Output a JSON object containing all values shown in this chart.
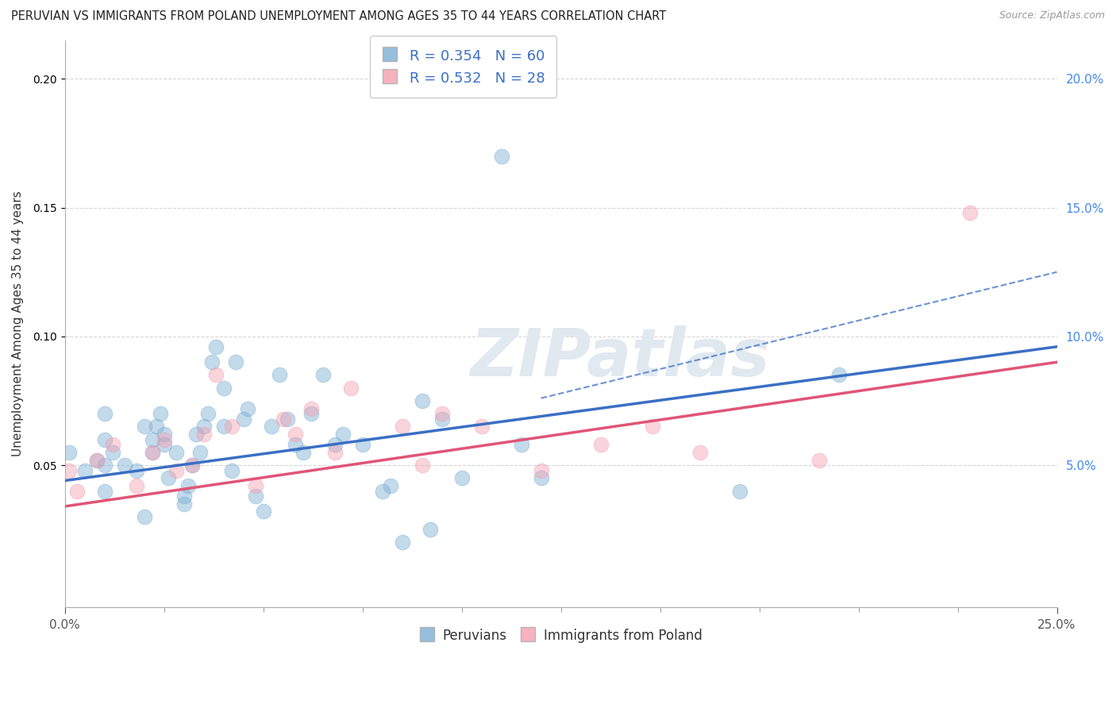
{
  "title": "PERUVIAN VS IMMIGRANTS FROM POLAND UNEMPLOYMENT AMONG AGES 35 TO 44 YEARS CORRELATION CHART",
  "source": "Source: ZipAtlas.com",
  "ylabel": "Unemployment Among Ages 35 to 44 years",
  "xlim": [
    0.0,
    0.25
  ],
  "ylim": [
    -0.005,
    0.215
  ],
  "yticks_right": [
    0.05,
    0.1,
    0.15,
    0.2
  ],
  "background_color": "#ffffff",
  "grid_color": "#cccccc",
  "peruvian_color": "#7bafd4",
  "poland_color": "#f4a0b0",
  "peruvian_line_color": "#3a6fc4",
  "poland_line_color": "#e05577",
  "peruvian_label": "Peruvians",
  "poland_label": "Immigrants from Poland",
  "peruvian_R": "0.354",
  "peruvian_N": "60",
  "poland_R": "0.532",
  "poland_N": "28",
  "right_tick_color": "#4488ee",
  "peruvian_scatter_x": [
    0.001,
    0.005,
    0.008,
    0.01,
    0.01,
    0.01,
    0.01,
    0.012,
    0.015,
    0.018,
    0.02,
    0.02,
    0.022,
    0.022,
    0.023,
    0.024,
    0.025,
    0.025,
    0.026,
    0.028,
    0.03,
    0.03,
    0.031,
    0.032,
    0.033,
    0.034,
    0.035,
    0.036,
    0.037,
    0.038,
    0.04,
    0.04,
    0.042,
    0.043,
    0.045,
    0.046,
    0.048,
    0.05,
    0.052,
    0.054,
    0.056,
    0.058,
    0.06,
    0.062,
    0.065,
    0.068,
    0.07,
    0.075,
    0.08,
    0.082,
    0.085,
    0.09,
    0.092,
    0.095,
    0.1,
    0.11,
    0.115,
    0.12,
    0.17,
    0.195
  ],
  "peruvian_scatter_y": [
    0.055,
    0.048,
    0.052,
    0.04,
    0.05,
    0.06,
    0.07,
    0.055,
    0.05,
    0.048,
    0.03,
    0.065,
    0.055,
    0.06,
    0.065,
    0.07,
    0.058,
    0.062,
    0.045,
    0.055,
    0.035,
    0.038,
    0.042,
    0.05,
    0.062,
    0.055,
    0.065,
    0.07,
    0.09,
    0.096,
    0.065,
    0.08,
    0.048,
    0.09,
    0.068,
    0.072,
    0.038,
    0.032,
    0.065,
    0.085,
    0.068,
    0.058,
    0.055,
    0.07,
    0.085,
    0.058,
    0.062,
    0.058,
    0.04,
    0.042,
    0.02,
    0.075,
    0.025,
    0.068,
    0.045,
    0.17,
    0.058,
    0.045,
    0.04,
    0.085
  ],
  "poland_scatter_x": [
    0.001,
    0.003,
    0.008,
    0.012,
    0.018,
    0.022,
    0.025,
    0.028,
    0.032,
    0.035,
    0.038,
    0.042,
    0.048,
    0.055,
    0.058,
    0.062,
    0.068,
    0.072,
    0.085,
    0.09,
    0.095,
    0.105,
    0.12,
    0.135,
    0.148,
    0.16,
    0.19,
    0.228
  ],
  "poland_scatter_y": [
    0.048,
    0.04,
    0.052,
    0.058,
    0.042,
    0.055,
    0.06,
    0.048,
    0.05,
    0.062,
    0.085,
    0.065,
    0.042,
    0.068,
    0.062,
    0.072,
    0.055,
    0.08,
    0.065,
    0.05,
    0.07,
    0.065,
    0.048,
    0.058,
    0.065,
    0.055,
    0.052,
    0.148
  ],
  "blue_line_x0": 0.0,
  "blue_line_x1": 0.25,
  "blue_line_y0": 0.044,
  "blue_line_y1": 0.096,
  "pink_line_x0": 0.0,
  "pink_line_x1": 0.25,
  "pink_line_y0": 0.034,
  "pink_line_y1": 0.09,
  "dash_line_x0": 0.12,
  "dash_line_x1": 0.25,
  "dash_line_y0": 0.076,
  "dash_line_y1": 0.125,
  "watermark": "ZIPatlas",
  "watermark_color": "#e0e8f0",
  "legend_R_color": "#3a6fc4",
  "legend_N_color": "#22aa22"
}
